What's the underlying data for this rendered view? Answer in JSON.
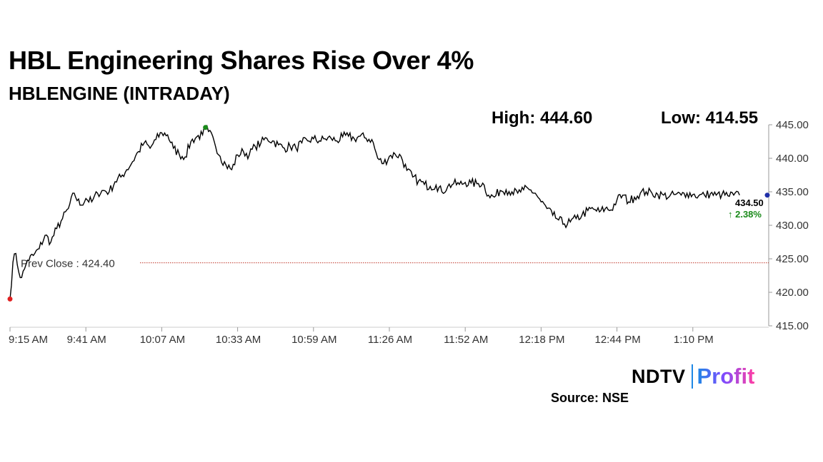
{
  "header": {
    "title": "HBL Engineering Shares Rise Over 4%",
    "subtitle": "HBLENGINE (INTRADAY)"
  },
  "stats": {
    "high_label": "High: 444.60",
    "low_label": "Low: 414.55"
  },
  "footer": {
    "logo_ndtv": "NDTV",
    "logo_profit": "Profit",
    "source": "Source: NSE"
  },
  "colors": {
    "line": "#000000",
    "prev_close_line": "#c0392b",
    "high_marker": "#1a8a1a",
    "low_marker": "#e02020",
    "last_marker": "#1f2fa8",
    "change_text": "#1a8a1a"
  },
  "chart_data": {
    "type": "line",
    "title": "HBLENGINE (INTRADAY)",
    "xlabel": "",
    "ylabel": "",
    "x_ticks": [
      "9:15 AM",
      "9:41 AM",
      "10:07 AM",
      "10:33 AM",
      "10:59 AM",
      "11:26 AM",
      "11:52 AM",
      "12:18 PM",
      "12:44 PM",
      "1:10 PM"
    ],
    "y_ticks": [
      "415.00",
      "420.00",
      "425.00",
      "430.00",
      "435.00",
      "440.00",
      "445.00"
    ],
    "ylim": [
      415,
      445
    ],
    "prev_close": 424.4,
    "prev_close_label": "Prev Close : 424.40",
    "last_price": 434.5,
    "last_price_label": "434.50",
    "change_label": "↑ 2.38%",
    "high": 444.6,
    "low": 414.55,
    "grid": false,
    "series": [
      {
        "x_minutes": [
          0,
          1,
          2,
          3,
          4,
          5,
          6,
          8,
          10,
          12,
          14,
          16,
          18,
          20,
          22,
          24,
          26,
          28,
          30,
          32,
          34,
          36,
          38,
          40,
          42,
          44,
          46,
          48,
          50,
          52,
          54,
          56,
          58,
          60,
          62,
          64,
          66,
          67,
          68,
          70,
          72,
          74,
          76,
          78,
          80,
          82,
          84,
          86,
          88,
          90,
          92,
          94,
          96,
          98,
          100,
          102,
          104,
          106,
          108,
          110,
          112,
          114,
          116,
          118,
          120,
          122,
          124,
          126,
          128,
          130,
          132,
          134,
          136,
          138,
          140,
          142,
          144,
          146,
          148,
          150,
          152,
          154,
          156,
          158,
          160,
          162,
          164,
          166,
          168,
          170,
          172,
          174,
          176,
          178,
          180,
          182,
          184,
          186,
          188,
          190,
          192,
          194,
          196,
          198,
          200,
          202,
          204,
          206,
          208,
          210,
          212,
          214,
          216,
          218,
          220,
          222,
          224,
          226,
          228,
          230,
          232,
          234,
          236,
          238,
          240,
          242,
          244,
          246,
          248,
          250
        ],
        "values": [
          419.0,
          424.5,
          425.8,
          423.0,
          422.2,
          423.5,
          424.8,
          425.5,
          426.5,
          428.5,
          427.5,
          429.5,
          431.0,
          432.5,
          434.8,
          433.0,
          434.0,
          433.5,
          434.8,
          435.2,
          435.0,
          436.5,
          437.2,
          438.3,
          439.5,
          441.0,
          442.3,
          441.5,
          442.8,
          443.8,
          443.5,
          441.5,
          440.6,
          440.2,
          442.5,
          443.2,
          443.5,
          444.6,
          444.0,
          442.5,
          440.3,
          439.0,
          438.3,
          440.5,
          441.0,
          440.5,
          441.8,
          442.3,
          443.0,
          442.6,
          442.0,
          441.5,
          441.8,
          441.5,
          442.3,
          442.6,
          442.9,
          442.6,
          442.9,
          443.0,
          442.6,
          443.2,
          443.3,
          442.9,
          443.3,
          443.0,
          442.8,
          440.0,
          439.2,
          440.3,
          440.6,
          440.3,
          438.2,
          437.2,
          436.6,
          436.1,
          435.8,
          436.0,
          435.0,
          435.8,
          436.2,
          436.1,
          436.4,
          436.3,
          436.2,
          436.3,
          434.5,
          434.2,
          435.2,
          435.3,
          435.0,
          434.8,
          435.3,
          435.3,
          434.8,
          433.5,
          432.5,
          431.5,
          430.8,
          430.2,
          430.5,
          431.0,
          431.5,
          432.2,
          432.4,
          432.0,
          432.5,
          432.3,
          433.8,
          434.5,
          433.5,
          434.2,
          434.8,
          435.0,
          434.8,
          434.6,
          434.5,
          434.3,
          434.6,
          434.5,
          434.8,
          434.6,
          434.4,
          434.5,
          434.7,
          434.5,
          434.6,
          434.4,
          434.5,
          434.5
        ]
      }
    ]
  }
}
